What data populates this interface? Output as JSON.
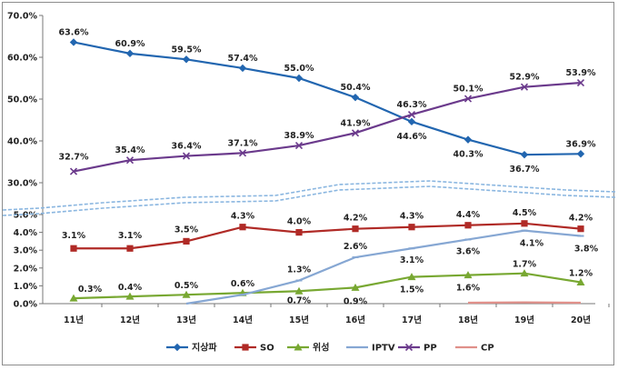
{
  "chart_data": {
    "type": "line",
    "categories": [
      "11년",
      "12년",
      "13년",
      "14년",
      "15년",
      "16년",
      "17년",
      "18년",
      "19년",
      "20년"
    ],
    "upper_axis": {
      "ylim": [
        30,
        70
      ],
      "ticks": [
        "70.0%",
        "60.0%",
        "50.0%",
        "40.0%",
        "30.0%"
      ]
    },
    "lower_axis": {
      "ylim": [
        0,
        5
      ],
      "ticks": [
        "5.0%",
        "4.0%",
        "3.0%",
        "2.0%",
        "1.0%",
        "0.0%"
      ]
    },
    "axis_break": true,
    "legend_position": "bottom",
    "series": [
      {
        "name": "지상파",
        "panel": "upper",
        "color": "#2266b0",
        "marker": "diamond",
        "values": [
          63.6,
          60.9,
          59.5,
          57.4,
          55.0,
          50.4,
          44.6,
          40.3,
          36.7,
          36.9
        ],
        "labels": [
          "63.6%",
          "60.9%",
          "59.5%",
          "57.4%",
          "55.0%",
          "50.4%",
          "44.6%",
          "40.3%",
          "36.7%",
          "36.9%"
        ]
      },
      {
        "name": "PP",
        "panel": "upper",
        "color": "#6b3a8c",
        "marker": "x",
        "values": [
          32.7,
          35.4,
          36.4,
          37.1,
          38.9,
          41.9,
          46.3,
          50.1,
          52.9,
          53.9
        ],
        "labels": [
          "32.7%",
          "35.4%",
          "36.4%",
          "37.1%",
          "38.9%",
          "41.9%",
          "46.3%",
          "50.1%",
          "52.9%",
          "53.9%"
        ]
      },
      {
        "name": "SO",
        "panel": "lower",
        "color": "#b02a26",
        "marker": "square",
        "values": [
          3.1,
          3.1,
          3.5,
          4.3,
          4.0,
          4.2,
          4.3,
          4.4,
          4.5,
          4.2
        ],
        "labels": [
          "3.1%",
          "3.1%",
          "3.5%",
          "4.3%",
          "4.0%",
          "4.2%",
          "4.3%",
          "4.4%",
          "4.5%",
          "4.2%"
        ]
      },
      {
        "name": "위성",
        "panel": "lower",
        "color": "#78a832",
        "marker": "triangle",
        "values": [
          0.3,
          0.4,
          0.5,
          0.6,
          0.7,
          0.9,
          1.5,
          1.6,
          1.7,
          1.2
        ],
        "labels": [
          "0.3%",
          "0.4%",
          "0.5%",
          "0.6%",
          "0.7%",
          "0.9%",
          "1.5%",
          "1.6%",
          "1.7%",
          "1.2%"
        ]
      },
      {
        "name": "IPTV",
        "panel": "lower",
        "color": "#86a7d3",
        "marker": "dash",
        "values": [
          null,
          null,
          0.0,
          0.5,
          1.3,
          2.6,
          3.1,
          3.6,
          4.1,
          3.8
        ],
        "labels": [
          null,
          null,
          null,
          null,
          "1.3%",
          "2.6%",
          "3.1%",
          "3.6%",
          "4.1%",
          "3.8%"
        ]
      },
      {
        "name": "CP",
        "panel": "lower",
        "color": "#e0908a",
        "marker": "dash",
        "values": [
          null,
          null,
          null,
          null,
          null,
          null,
          null,
          0.05,
          0.07,
          0.05
        ],
        "labels": [
          null,
          null,
          null,
          null,
          null,
          null,
          null,
          null,
          null,
          null
        ]
      }
    ]
  }
}
